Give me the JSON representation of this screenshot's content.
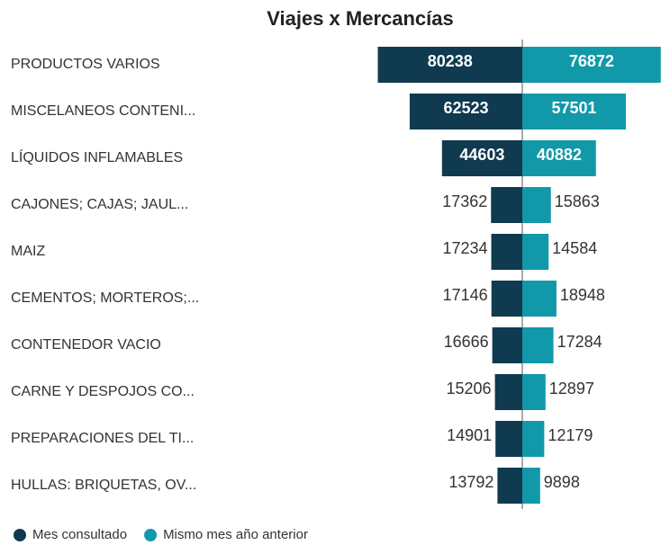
{
  "chart_data": {
    "type": "butterfly",
    "title": "Viajes x Mercancías",
    "categories": [
      "PRODUCTOS VARIOS",
      "MISCELANEOS CONTENI...",
      "LÍQUIDOS INFLAMABLES",
      "CAJONES; CAJAS; JAUL...",
      "MAIZ",
      "CEMENTOS; MORTEROS;...",
      "CONTENEDOR VACIO",
      "CARNE Y DESPOJOS CO...",
      "PREPARACIONES DEL TI...",
      "HULLAS: BRIQUETAS, OV..."
    ],
    "series": [
      {
        "name": "Mes consultado",
        "color": "#0f3a4f",
        "values": [
          80238,
          62523,
          44603,
          17362,
          17234,
          17146,
          16666,
          15206,
          14901,
          13792
        ]
      },
      {
        "name": "Mismo mes año anterior",
        "color": "#1199aa",
        "values": [
          76872,
          57501,
          40882,
          15863,
          14584,
          18948,
          17284,
          12897,
          12179,
          9898
        ]
      }
    ]
  }
}
